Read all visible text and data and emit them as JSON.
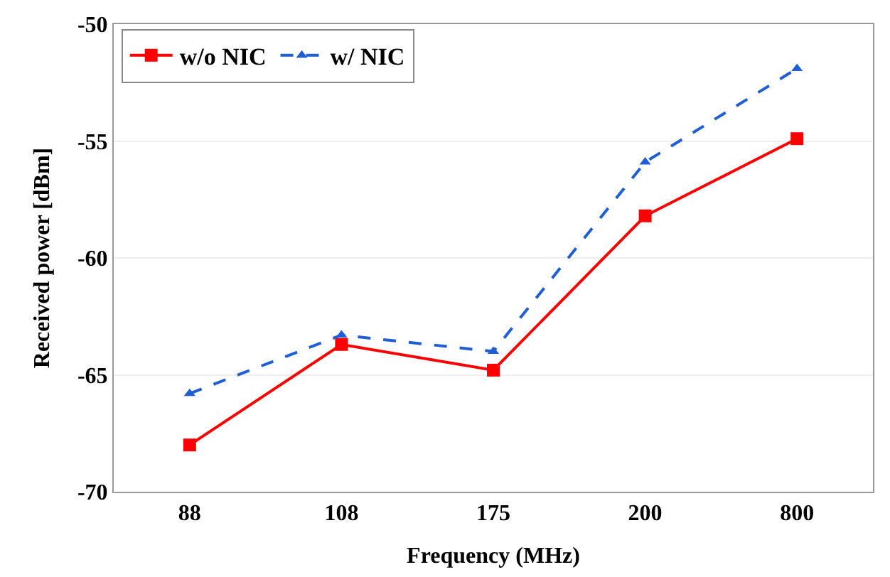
{
  "chart_data": {
    "type": "line",
    "xlabel": "Frequency (MHz)",
    "ylabel": "Received power [dBm]",
    "categories": [
      "88",
      "108",
      "175",
      "200",
      "800"
    ],
    "series": [
      {
        "name": "w/o NIC",
        "color": "#ff0000",
        "values": [
          -68.0,
          -63.7,
          -64.8,
          -58.2,
          -54.9
        ],
        "marker": "square",
        "line_style": "solid"
      },
      {
        "name": "w/ NIC",
        "color": "#1f5fd6",
        "values": [
          -65.8,
          -63.3,
          -64.0,
          -55.9,
          -51.9
        ],
        "marker": "triangle",
        "line_style": "dashed"
      }
    ],
    "ylim": [
      -70,
      -50
    ],
    "yticks": [
      -70,
      -65,
      -60,
      -55,
      -50
    ],
    "grid": "y",
    "legend": "top left"
  }
}
